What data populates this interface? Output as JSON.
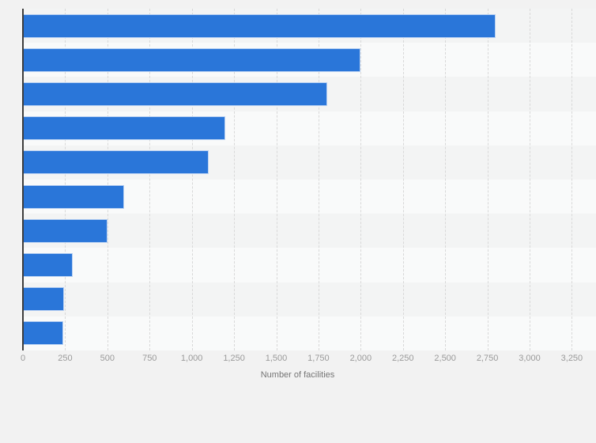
{
  "chart_data": {
    "type": "bar",
    "orientation": "horizontal",
    "title": "",
    "xlabel": "Number of facilities",
    "ylabel": "",
    "xlim": [
      0,
      3250
    ],
    "x_tick_step": 250,
    "x_tick_labels": [
      "0",
      "250",
      "500",
      "750",
      "1,000",
      "1,250",
      "1,500",
      "1,750",
      "2,000",
      "2,250",
      "2,500",
      "2,750",
      "3,000",
      "3,250"
    ],
    "values": [
      2800,
      2000,
      1800,
      1200,
      1100,
      600,
      500,
      295,
      245,
      240
    ],
    "grid": "vertical-dashed",
    "legend": "none",
    "colors": {
      "bar_fill": "#2a76d9",
      "bar_border": "#b7d0f2",
      "page_background": "#f2f2f2",
      "stripe_odd_row": "#f3f4f4",
      "stripe_even_row": "#f9fafa",
      "gridline": "#d8d8d8",
      "axis_line": "#3d3d3d",
      "tick_label": "#9a9a9a",
      "axis_title": "#757575"
    }
  }
}
